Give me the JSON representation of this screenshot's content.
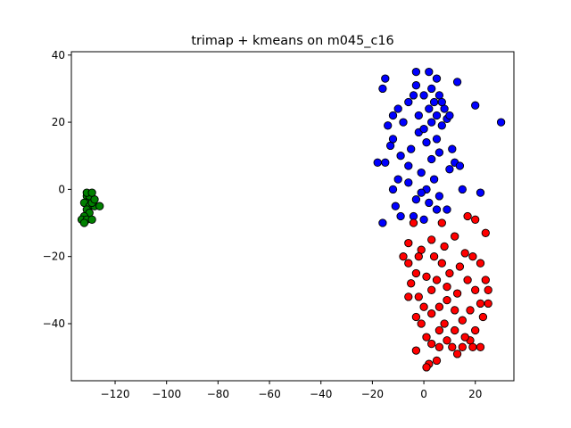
{
  "chart_data": {
    "type": "scatter",
    "title": "trimap + kmeans on m045_c16",
    "xlabel": "",
    "ylabel": "",
    "xlim": [
      -137,
      35
    ],
    "ylim": [
      -57,
      41
    ],
    "xticks": [
      -120,
      -100,
      -80,
      -60,
      -40,
      -20,
      0,
      20
    ],
    "yticks": [
      40,
      20,
      0,
      -20,
      -40
    ],
    "grid": false,
    "legend": "none",
    "series": [
      {
        "color": "#0000ff",
        "points": [
          [
            -3,
            35
          ],
          [
            2,
            35
          ],
          [
            -15,
            33
          ],
          [
            5,
            33
          ],
          [
            -16,
            30
          ],
          [
            13,
            32
          ],
          [
            20,
            25
          ],
          [
            30,
            20
          ],
          [
            -10,
            24
          ],
          [
            -12,
            22
          ],
          [
            9,
            21
          ],
          [
            -14,
            19
          ],
          [
            -6,
            26
          ],
          [
            4,
            26
          ],
          [
            0,
            28
          ],
          [
            -3,
            31
          ],
          [
            3,
            30
          ],
          [
            6,
            28
          ],
          [
            8,
            24
          ],
          [
            10,
            22
          ],
          [
            -13,
            13
          ],
          [
            -15,
            8
          ],
          [
            -18,
            8
          ],
          [
            -10,
            3
          ],
          [
            -12,
            0
          ],
          [
            -11,
            -5
          ],
          [
            -16,
            -10
          ],
          [
            -9,
            -8
          ],
          [
            -4,
            -8
          ],
          [
            0,
            -9
          ],
          [
            5,
            -6
          ],
          [
            9,
            -6
          ],
          [
            15,
            0
          ],
          [
            22,
            -1
          ],
          [
            -2,
            17
          ],
          [
            1,
            14
          ],
          [
            5,
            15
          ],
          [
            -5,
            12
          ],
          [
            3,
            9
          ],
          [
            -1,
            5
          ],
          [
            4,
            3
          ],
          [
            -6,
            2
          ],
          [
            1,
            0
          ],
          [
            6,
            -2
          ],
          [
            -3,
            -3
          ],
          [
            2,
            -4
          ],
          [
            7,
            19
          ],
          [
            -8,
            20
          ],
          [
            11,
            12
          ],
          [
            -12,
            15
          ],
          [
            -2,
            22
          ],
          [
            3,
            20
          ],
          [
            6,
            11
          ],
          [
            10,
            6
          ],
          [
            12,
            8
          ],
          [
            14,
            7
          ],
          [
            -6,
            7
          ],
          [
            -9,
            10
          ],
          [
            -1,
            -1
          ],
          [
            0,
            18
          ],
          [
            5,
            22
          ],
          [
            -4,
            28
          ],
          [
            2,
            24
          ],
          [
            7,
            26
          ]
        ]
      },
      {
        "color": "#ff0000",
        "points": [
          [
            -4,
            -10
          ],
          [
            7,
            -10
          ],
          [
            17,
            -8
          ],
          [
            20,
            -9
          ],
          [
            24,
            -13
          ],
          [
            -6,
            -16
          ],
          [
            -8,
            -20
          ],
          [
            -6,
            -22
          ],
          [
            -3,
            -25
          ],
          [
            -1,
            -18
          ],
          [
            3,
            -15
          ],
          [
            8,
            -17
          ],
          [
            12,
            -14
          ],
          [
            16,
            -19
          ],
          [
            19,
            -20
          ],
          [
            22,
            -22
          ],
          [
            24,
            -27
          ],
          [
            25,
            -30
          ],
          [
            22,
            -34
          ],
          [
            23,
            -38
          ],
          [
            20,
            -42
          ],
          [
            18,
            -45
          ],
          [
            15,
            -47
          ],
          [
            13,
            -49
          ],
          [
            11,
            -47
          ],
          [
            9,
            -45
          ],
          [
            6,
            -47
          ],
          [
            3,
            -46
          ],
          [
            2,
            -52
          ],
          [
            5,
            -51
          ],
          [
            1,
            -53
          ],
          [
            -3,
            -48
          ],
          [
            -5,
            -28
          ],
          [
            -2,
            -32
          ],
          [
            0,
            -35
          ],
          [
            -3,
            -38
          ],
          [
            -1,
            -40
          ],
          [
            3,
            -37
          ],
          [
            6,
            -35
          ],
          [
            9,
            -33
          ],
          [
            12,
            -36
          ],
          [
            15,
            -39
          ],
          [
            18,
            -36
          ],
          [
            20,
            -30
          ],
          [
            10,
            -25
          ],
          [
            7,
            -22
          ],
          [
            4,
            -20
          ],
          [
            1,
            -26
          ],
          [
            14,
            -23
          ],
          [
            17,
            -27
          ],
          [
            -6,
            -32
          ],
          [
            25,
            -34
          ],
          [
            -2,
            -20
          ],
          [
            3,
            -30
          ],
          [
            8,
            -40
          ],
          [
            12,
            -42
          ],
          [
            16,
            -44
          ],
          [
            19,
            -47
          ],
          [
            22,
            -47
          ],
          [
            5,
            -27
          ],
          [
            9,
            -29
          ],
          [
            13,
            -31
          ],
          [
            1,
            -44
          ],
          [
            6,
            -42
          ]
        ]
      },
      {
        "color": "#008000",
        "points": [
          [
            -131,
            -2
          ],
          [
            -130,
            -3
          ],
          [
            -132,
            -4
          ],
          [
            -130,
            -5
          ],
          [
            -128,
            -5
          ],
          [
            -126,
            -5
          ],
          [
            -129,
            -4
          ],
          [
            -131,
            -6
          ],
          [
            -130,
            -7
          ],
          [
            -132,
            -8
          ],
          [
            -133,
            -9
          ],
          [
            -131,
            -9
          ],
          [
            -129,
            -9
          ],
          [
            -132,
            -10
          ],
          [
            -130,
            -2
          ],
          [
            -128,
            -3
          ],
          [
            -131,
            -1
          ],
          [
            -129,
            -1
          ]
        ]
      }
    ]
  }
}
